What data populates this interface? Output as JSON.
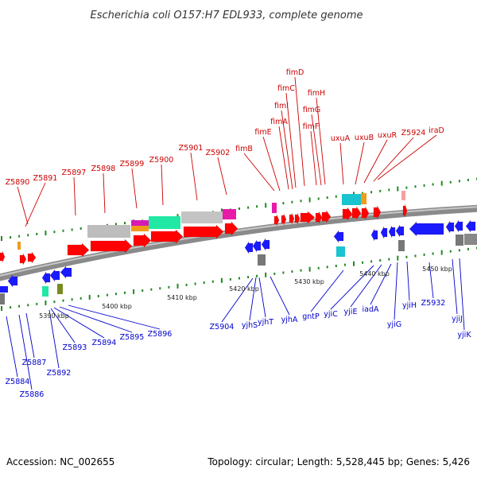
{
  "title": "Escherichia coli O157:H7 EDL933, complete genome",
  "footer": {
    "accession": "Accession: NC_002655",
    "summary": "Topology: circular; Length: 5,528,445 bp; Genes: 5,426"
  },
  "colors": {
    "forward_label": "#cc0000",
    "reverse_label": "#0000cc",
    "forward_gene": "#ff0000",
    "reverse_gene": "#1a1aff",
    "backbone": "#888888",
    "tick": "#228822"
  },
  "scale_labels": [
    "5390 kbp",
    "5400 kbp",
    "5410 kbp",
    "5420 kbp",
    "5430 kbp",
    "5440 kbp",
    "5450 kbp"
  ],
  "forward_labels": [
    "Z5890",
    "Z5891",
    "Z5897",
    "Z5898",
    "Z5899",
    "Z5900",
    "Z5901",
    "Z5902",
    "fimB",
    "fimE",
    "fimA",
    "fimI",
    "fimC",
    "fimD",
    "fimF",
    "fimG",
    "fimH",
    "uxuA",
    "uxuB",
    "uxuR",
    "Z5924",
    "iraD"
  ],
  "reverse_labels": [
    "Z5884",
    "Z5886",
    "Z5887",
    "Z5892",
    "Z5893",
    "Z5894",
    "Z5895",
    "Z5896",
    "Z5904",
    "yjhS",
    "yjhT",
    "yjhA",
    "gntP",
    "yjiC",
    "yjiE",
    "iadA",
    "yjiG",
    "yjiH",
    "Z5932",
    "yjiJ",
    "yjiK"
  ]
}
